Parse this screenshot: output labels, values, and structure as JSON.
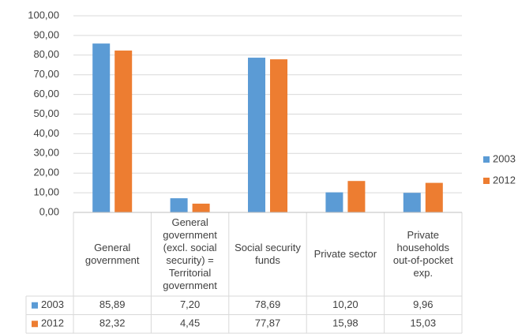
{
  "chart_data": {
    "type": "bar",
    "categories": [
      "General government",
      "General government (excl. social security) = Territorial government",
      "Social security funds",
      "Private sector",
      "Private households out-of-pocket exp."
    ],
    "series": [
      {
        "name": "2003",
        "color": "#5b9bd5",
        "values": [
          85.89,
          7.2,
          78.69,
          10.2,
          9.96
        ],
        "value_labels": [
          "85,89",
          "7,20",
          "78,69",
          "10,20",
          "9,96"
        ]
      },
      {
        "name": "2012",
        "color": "#ed7d31",
        "values": [
          82.32,
          4.45,
          77.87,
          15.98,
          15.03
        ],
        "value_labels": [
          "82,32",
          "4,45",
          "77,87",
          "15,98",
          "15,03"
        ]
      }
    ],
    "ylim": [
      0,
      100
    ],
    "yticks": [
      {
        "value": 0,
        "label": "0,00"
      },
      {
        "value": 10,
        "label": "10,00"
      },
      {
        "value": 20,
        "label": "20,00"
      },
      {
        "value": 30,
        "label": "30,00"
      },
      {
        "value": 40,
        "label": "40,00"
      },
      {
        "value": 50,
        "label": "50,00"
      },
      {
        "value": 60,
        "label": "60,00"
      },
      {
        "value": 70,
        "label": "70,00"
      },
      {
        "value": 80,
        "label": "80,00"
      },
      {
        "value": 90,
        "label": "90,00"
      },
      {
        "value": 100,
        "label": "100,00"
      }
    ],
    "grid": true,
    "legend": "right",
    "data_table": true
  }
}
